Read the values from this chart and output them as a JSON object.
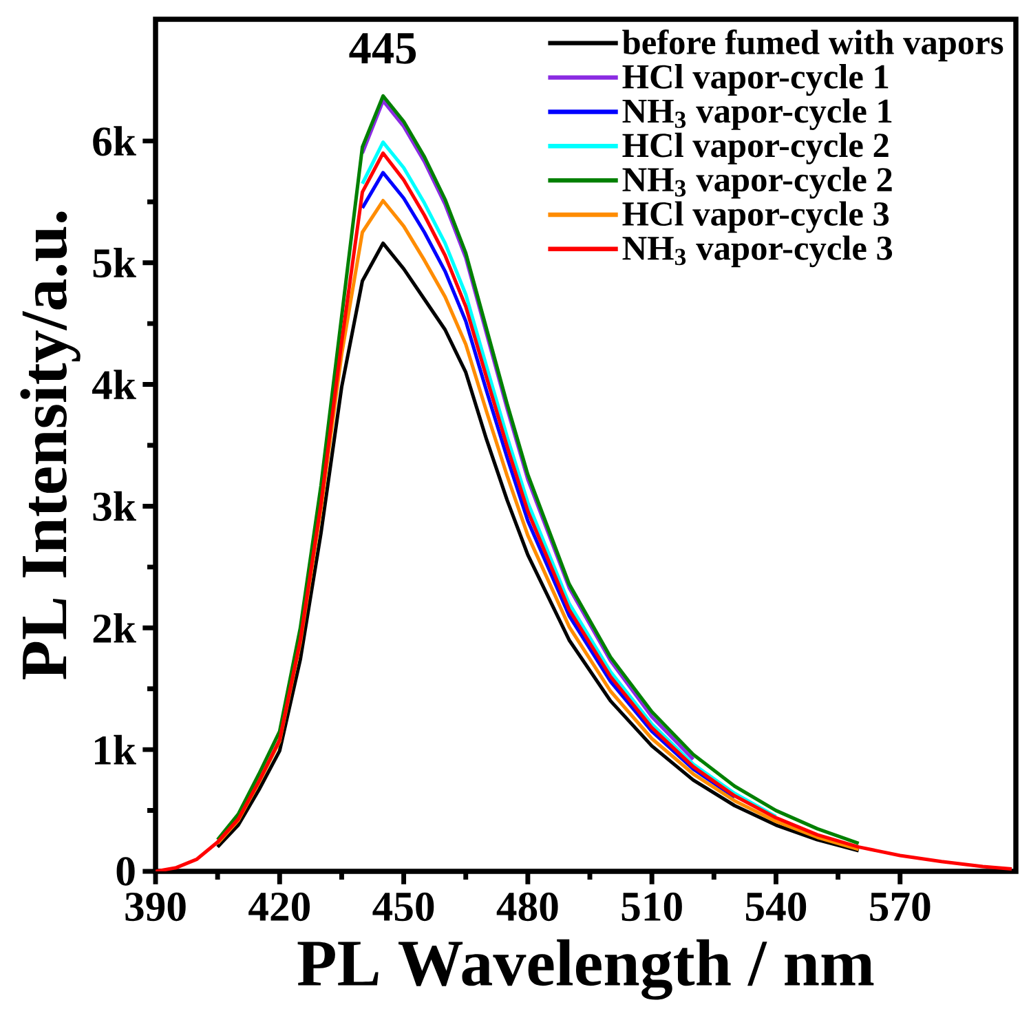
{
  "chart_data": {
    "type": "line",
    "xlabel": "PL Wavelength / nm",
    "ylabel": "PL  Intensity/a.u.",
    "annotations": [
      {
        "text": "445",
        "x": 445,
        "y": 6370
      }
    ],
    "x": [
      390,
      395,
      400,
      405,
      410,
      415,
      420,
      425,
      430,
      435,
      440,
      445,
      450,
      455,
      460,
      465,
      470,
      475,
      480,
      490,
      500,
      510,
      520,
      530,
      540,
      550,
      560,
      570,
      580,
      590,
      597
    ],
    "series": [
      {
        "name": "before fumed with vapors",
        "color": "#000000",
        "values": [
          null,
          null,
          null,
          200,
          380,
          670,
          990,
          1740,
          2780,
          3980,
          4850,
          5160,
          4950,
          4700,
          4450,
          4100,
          3550,
          3050,
          2600,
          1900,
          1400,
          1030,
          750,
          540,
          380,
          260,
          170,
          null,
          null,
          null,
          null
        ]
      },
      {
        "name": "HCl vapor-cycle 1",
        "color": "#8a2be2",
        "values": [
          null,
          null,
          null,
          null,
          null,
          null,
          null,
          null,
          null,
          null,
          5900,
          6330,
          6120,
          5830,
          5480,
          5040,
          4420,
          3800,
          3220,
          2330,
          1730,
          1270,
          920,
          null,
          null,
          null,
          null,
          null,
          null,
          null,
          null
        ]
      },
      {
        "name": "NH$_{3}$ vapor-cycle 1",
        "color": "#0000ff",
        "values": [
          null,
          null,
          null,
          null,
          null,
          null,
          null,
          null,
          null,
          null,
          5450,
          5740,
          5530,
          5250,
          4930,
          4520,
          3950,
          3400,
          2880,
          2100,
          1560,
          1150,
          840,
          610,
          null,
          null,
          null,
          null,
          null,
          null,
          null
        ]
      },
      {
        "name": "HCl vapor-cycle 2",
        "color": "#00ffff",
        "values": [
          null,
          null,
          null,
          null,
          null,
          null,
          null,
          null,
          null,
          null,
          5650,
          5990,
          5780,
          5490,
          5160,
          4740,
          4150,
          3570,
          3030,
          2200,
          1640,
          1210,
          880,
          640,
          450,
          null,
          null,
          null,
          null,
          null,
          null
        ]
      },
      {
        "name": "NH$_{3}$ vapor-cycle 2",
        "color": "#008000",
        "values": [
          null,
          null,
          null,
          260,
          470,
          800,
          1150,
          2000,
          3170,
          4560,
          5950,
          6370,
          6160,
          5870,
          5520,
          5080,
          4460,
          3840,
          3260,
          2360,
          1760,
          1310,
          960,
          700,
          500,
          350,
          230,
          null,
          null,
          null,
          null
        ]
      },
      {
        "name": "HCl vapor-cycle 3",
        "color": "#ff8c00",
        "values": [
          null,
          null,
          null,
          230,
          420,
          730,
          1070,
          1880,
          2980,
          4250,
          5250,
          5510,
          5300,
          5020,
          4720,
          4330,
          3780,
          3250,
          2760,
          2010,
          1480,
          1090,
          800,
          580,
          410,
          280,
          180,
          null,
          null,
          null,
          null
        ]
      },
      {
        "name": "NH$_{3}$ vapor-cycle 3",
        "color": "#ff0000",
        "values": [
          0,
          30,
          100,
          240,
          430,
          740,
          1080,
          1900,
          3020,
          4350,
          5580,
          5900,
          5680,
          5390,
          5060,
          4640,
          4060,
          3490,
          2960,
          2150,
          1600,
          1180,
          860,
          620,
          440,
          300,
          200,
          130,
          80,
          40,
          20
        ]
      }
    ],
    "xlim": [
      390,
      598
    ],
    "ylim": [
      0,
      7000
    ],
    "xticks": [
      390,
      420,
      450,
      480,
      510,
      540,
      570
    ],
    "yticks": [
      0,
      {
        "value": 1000,
        "label": "1k"
      },
      {
        "value": 2000,
        "label": "2k"
      },
      {
        "value": 3000,
        "label": "3k"
      },
      {
        "value": 4000,
        "label": "4k"
      },
      {
        "value": 5000,
        "label": "5k"
      },
      {
        "value": 6000,
        "label": "6k"
      }
    ],
    "grid": false,
    "legend": "top right",
    "line_style": "solid"
  }
}
